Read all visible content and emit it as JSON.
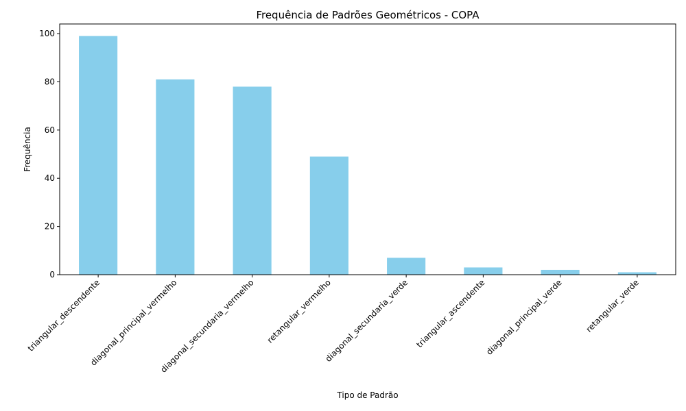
{
  "chart_data": {
    "type": "bar",
    "title": "Frequência de Padrões Geométricos - COPA",
    "xlabel": "Tipo de Padrão",
    "ylabel": "Frequência",
    "categories": [
      "triangular_descendente",
      "diagonal_principal_vermelho",
      "diagonal_secundaria_vermelho",
      "retangular_vermelho",
      "diagonal_secundaria_verde",
      "triangular_ascendente",
      "diagonal_principal_verde",
      "retangular_verde"
    ],
    "values": [
      99,
      81,
      78,
      49,
      7,
      3,
      2,
      1
    ],
    "ylim": [
      0,
      104
    ],
    "yticks": [
      0,
      20,
      40,
      60,
      80,
      100
    ],
    "bar_color": "#87ceeb",
    "grid": false,
    "legend": "none"
  }
}
